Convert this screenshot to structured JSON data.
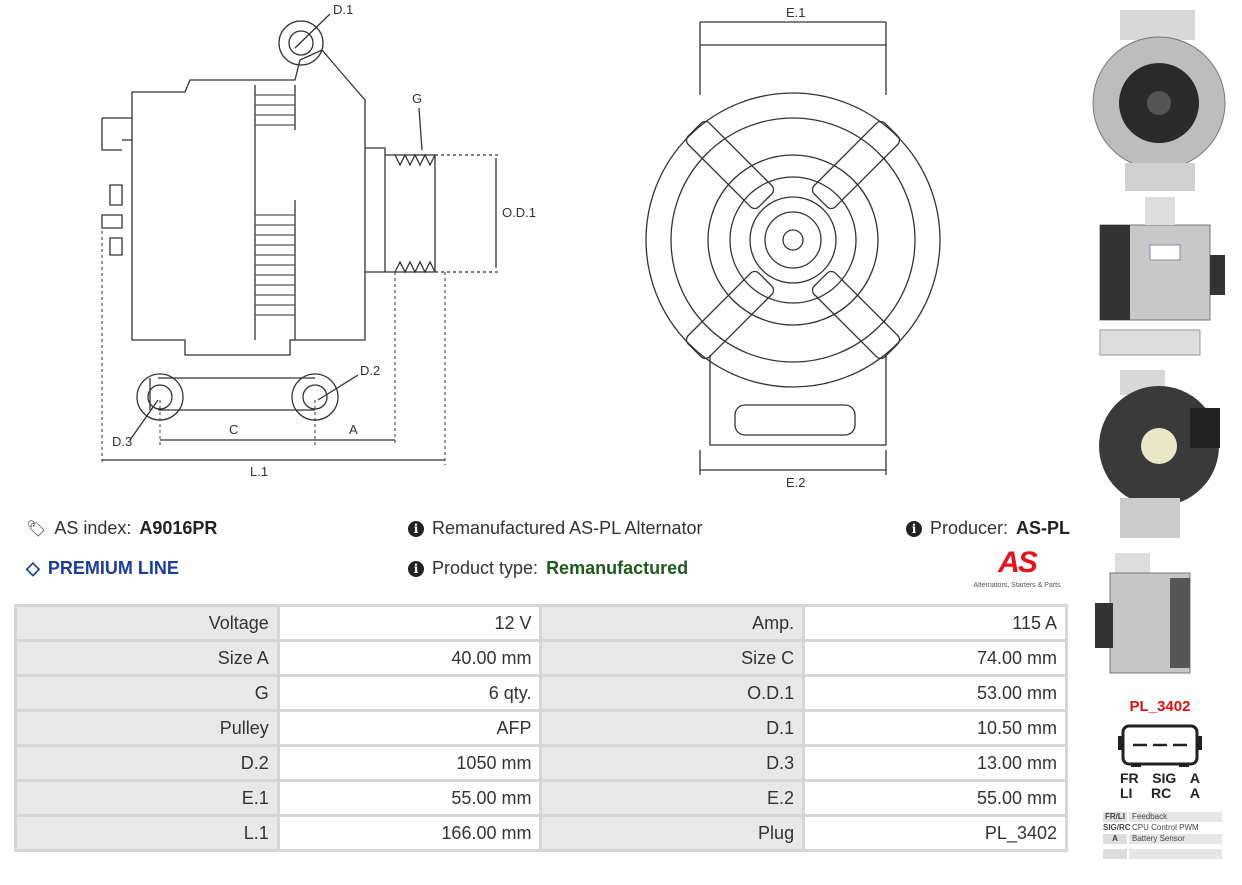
{
  "diagram": {
    "side_labels": {
      "d1": "D.1",
      "g": "G",
      "od1": "O.D.1",
      "d2": "D.2",
      "d3": "D.3",
      "c": "C",
      "a": "A",
      "l1": "L.1"
    },
    "front_labels": {
      "e1": "E.1",
      "e2": "E.2"
    }
  },
  "info": {
    "as_index_label": "AS index:",
    "as_index_value": "A9016PR",
    "premium_line": "PREMIUM LINE",
    "description": "Remanufactured AS-PL Alternator",
    "product_type_label": "Product type:",
    "product_type_value": "Remanufactured",
    "producer_label": "Producer:",
    "producer_value": "AS-PL",
    "logo_text": "AS",
    "logo_tagline": "Alternators, Starters & Parts"
  },
  "colors": {
    "premium": "#1a3d9e",
    "product_type": "#1e5a1e",
    "plug": "#e01010",
    "logo": "#e3141b"
  },
  "specs": [
    [
      "Voltage",
      "12 V",
      "Amp.",
      "115 A"
    ],
    [
      "Size A",
      "40.00 mm",
      "Size C",
      "74.00 mm"
    ],
    [
      "G",
      "6 qty.",
      "O.D.1",
      "53.00 mm"
    ],
    [
      "Pulley",
      "AFP",
      "D.1",
      "10.50 mm"
    ],
    [
      "D.2",
      "1050 mm",
      "D.3",
      "13.00 mm"
    ],
    [
      "E.1",
      "55.00 mm",
      "E.2",
      "55.00 mm"
    ],
    [
      "L.1",
      "166.00 mm",
      "Plug",
      "PL_3402"
    ]
  ],
  "plug": {
    "title": "PL_3402",
    "pins_top": [
      "FR",
      "SIG",
      "A"
    ],
    "pins_bottom": [
      "LI",
      "RC",
      "A"
    ],
    "legend": [
      {
        "key": "FR/LI",
        "value": "Feedback"
      },
      {
        "key": "SIG/RC",
        "value": "CPU Control PWM"
      },
      {
        "key": "A",
        "value": "Battery Sensor"
      }
    ]
  }
}
